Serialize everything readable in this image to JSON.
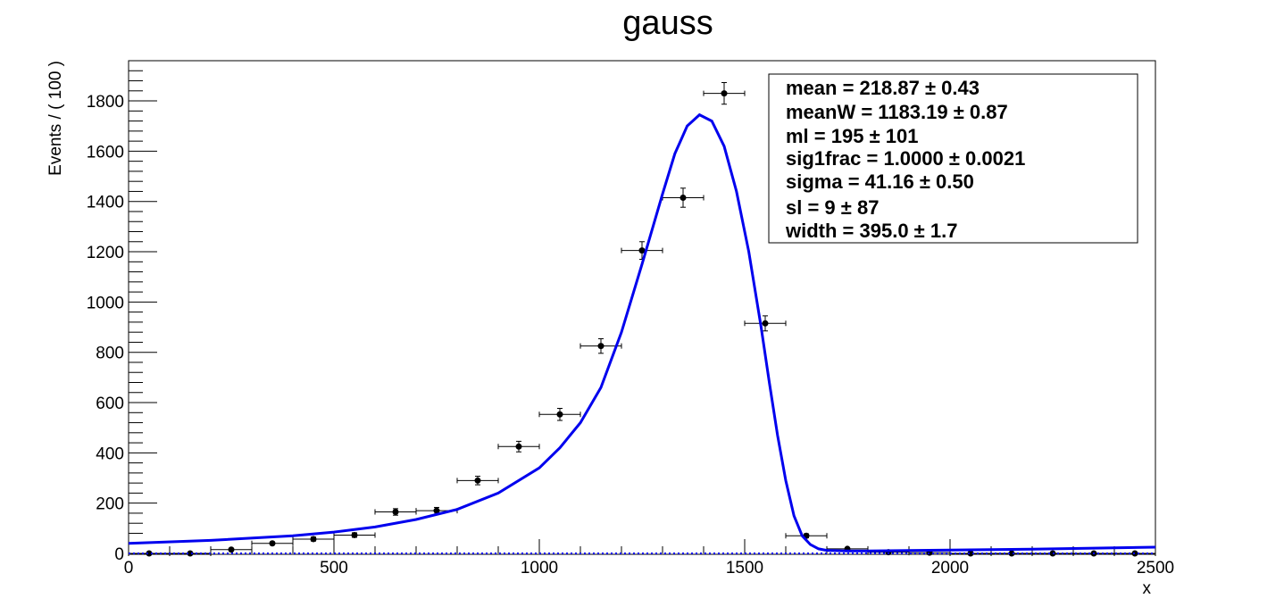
{
  "chart_data": {
    "type": "scatter",
    "title": "gauss",
    "xlabel": "x",
    "ylabel": "Events / ( 100 )",
    "xlim": [
      0,
      2500
    ],
    "ylim": [
      0,
      1960
    ],
    "x_ticks": [
      0,
      500,
      1000,
      1500,
      2000,
      2500
    ],
    "y_ticks": [
      0,
      200,
      400,
      600,
      800,
      1000,
      1200,
      1400,
      1600,
      1800
    ],
    "x_tick_labels": [
      "0",
      "500",
      "1000",
      "1500",
      "2000",
      "2500"
    ],
    "y_tick_labels": [
      "0",
      "200",
      "400",
      "600",
      "800",
      "1000",
      "1200",
      "1400",
      "1600",
      "1800"
    ],
    "bin_half_width": 50,
    "points": [
      {
        "x": 50,
        "y": 0,
        "err": 0
      },
      {
        "x": 150,
        "y": 0,
        "err": 0
      },
      {
        "x": 250,
        "y": 15,
        "err": 4
      },
      {
        "x": 350,
        "y": 40,
        "err": 6
      },
      {
        "x": 450,
        "y": 57,
        "err": 8
      },
      {
        "x": 550,
        "y": 73,
        "err": 9
      },
      {
        "x": 650,
        "y": 165,
        "err": 13
      },
      {
        "x": 750,
        "y": 170,
        "err": 13
      },
      {
        "x": 850,
        "y": 290,
        "err": 17
      },
      {
        "x": 950,
        "y": 425,
        "err": 21
      },
      {
        "x": 1050,
        "y": 553,
        "err": 24
      },
      {
        "x": 1150,
        "y": 825,
        "err": 29
      },
      {
        "x": 1250,
        "y": 1205,
        "err": 35
      },
      {
        "x": 1350,
        "y": 1415,
        "err": 38
      },
      {
        "x": 1450,
        "y": 1830,
        "err": 43
      },
      {
        "x": 1550,
        "y": 915,
        "err": 30
      },
      {
        "x": 1650,
        "y": 70,
        "err": 8
      },
      {
        "x": 1750,
        "y": 18,
        "err": 4
      },
      {
        "x": 1850,
        "y": 5,
        "err": 2
      },
      {
        "x": 1950,
        "y": 3,
        "err": 2
      },
      {
        "x": 2050,
        "y": 0,
        "err": 0
      },
      {
        "x": 2150,
        "y": 0,
        "err": 0
      },
      {
        "x": 2250,
        "y": 0,
        "err": 0
      },
      {
        "x": 2350,
        "y": 0,
        "err": 0
      },
      {
        "x": 2450,
        "y": 0,
        "err": 0
      }
    ],
    "fit_curve": {
      "color": "#0000ee",
      "x": [
        0,
        200,
        400,
        500,
        600,
        700,
        800,
        900,
        1000,
        1050,
        1100,
        1150,
        1200,
        1250,
        1300,
        1330,
        1360,
        1390,
        1420,
        1450,
        1480,
        1510,
        1540,
        1560,
        1580,
        1600,
        1620,
        1640,
        1660,
        1680,
        1700,
        1750,
        1800,
        2000,
        2200,
        2400,
        2500
      ],
      "y": [
        40,
        52,
        70,
        85,
        105,
        135,
        175,
        240,
        340,
        420,
        520,
        660,
        880,
        1150,
        1430,
        1590,
        1700,
        1745,
        1720,
        1620,
        1440,
        1200,
        900,
        680,
        470,
        290,
        150,
        70,
        35,
        18,
        12,
        10,
        10,
        13,
        17,
        22,
        25
      ]
    },
    "stats_box": {
      "lines": [
        "mean =  218.87 ± 0.43",
        "meanW =  1183.19 ± 0.87",
        "ml =  195 ± 101",
        "sig1frac =  1.0000 ± 0.0021",
        "sigma =  41.16 ± 0.50",
        "sl =  9 ± 87",
        "width =  395.0 ± 1.7"
      ]
    }
  }
}
